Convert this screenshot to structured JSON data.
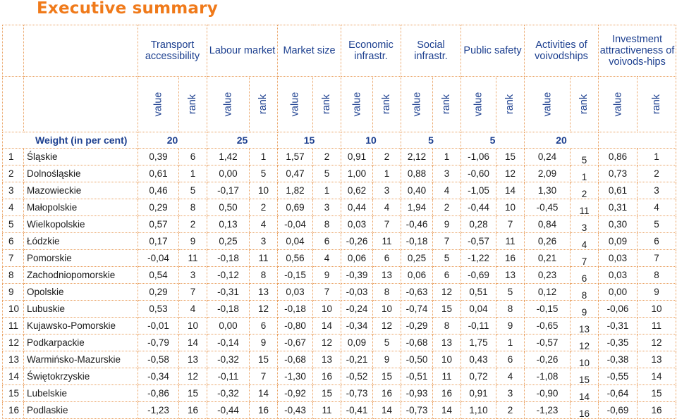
{
  "title": "Executive summary",
  "headers": [
    "Transport accessibility",
    "Labour market",
    "Market size",
    "Economic infrastr.",
    "Social infrastr.",
    "Public safety",
    "Activities of voivodships",
    "Investment attractiveness of voivods-hips"
  ],
  "sub_value": "value",
  "sub_rank": "rank",
  "weight_label": "Weight (in per cent)",
  "weights": [
    "20",
    "25",
    "15",
    "10",
    "5",
    "5",
    "20"
  ],
  "rows": [
    {
      "n": "1",
      "name": "Śląskie",
      "v": [
        "0,39",
        "6",
        "1,42",
        "1",
        "1,57",
        "2",
        "0,91",
        "2",
        "2,12",
        "1",
        "-1,06",
        "15",
        "0,24",
        "5",
        "0,86",
        "1"
      ]
    },
    {
      "n": "2",
      "name": "Dolnośląskie",
      "v": [
        "0,61",
        "1",
        "0,00",
        "5",
        "0,47",
        "5",
        "1,00",
        "1",
        "0,88",
        "3",
        "-0,60",
        "12",
        "2,09",
        "1",
        "0,73",
        "2"
      ]
    },
    {
      "n": "3",
      "name": "Mazowieckie",
      "v": [
        "0,46",
        "5",
        "-0,17",
        "10",
        "1,82",
        "1",
        "0,62",
        "3",
        "0,40",
        "4",
        "-1,05",
        "14",
        "1,30",
        "2",
        "0,61",
        "3"
      ]
    },
    {
      "n": "4",
      "name": "Małopolskie",
      "v": [
        "0,29",
        "8",
        "0,50",
        "2",
        "0,69",
        "3",
        "0,44",
        "4",
        "1,94",
        "2",
        "-0,44",
        "10",
        "-0,45",
        "11",
        "0,31",
        "4"
      ]
    },
    {
      "n": "5",
      "name": "Wielkopolskie",
      "v": [
        "0,57",
        "2",
        "0,13",
        "4",
        "-0,04",
        "8",
        "0,03",
        "7",
        "-0,46",
        "9",
        "0,28",
        "7",
        "0,84",
        "3",
        "0,30",
        "5"
      ]
    },
    {
      "n": "6",
      "name": "Łódzkie",
      "v": [
        "0,17",
        "9",
        "0,25",
        "3",
        "0,04",
        "6",
        "-0,26",
        "11",
        "-0,18",
        "7",
        "-0,57",
        "11",
        "0,26",
        "4",
        "0,09",
        "6"
      ]
    },
    {
      "n": "7",
      "name": "Pomorskie",
      "v": [
        "-0,04",
        "11",
        "-0,18",
        "11",
        "0,56",
        "4",
        "0,06",
        "6",
        "0,25",
        "5",
        "-1,22",
        "16",
        "0,21",
        "7",
        "0,03",
        "7"
      ]
    },
    {
      "n": "8",
      "name": "Zachodniopomorskie",
      "v": [
        "0,54",
        "3",
        "-0,12",
        "8",
        "-0,15",
        "9",
        "-0,39",
        "13",
        "0,06",
        "6",
        "-0,69",
        "13",
        "0,23",
        "6",
        "0,03",
        "8"
      ]
    },
    {
      "n": "9",
      "name": "Opolskie",
      "v": [
        "0,29",
        "7",
        "-0,31",
        "13",
        "0,03",
        "7",
        "-0,03",
        "8",
        "-0,63",
        "12",
        "0,51",
        "5",
        "0,12",
        "8",
        "0,00",
        "9"
      ]
    },
    {
      "n": "10",
      "name": "Lubuskie",
      "v": [
        "0,53",
        "4",
        "-0,18",
        "12",
        "-0,18",
        "10",
        "-0,24",
        "10",
        "-0,74",
        "15",
        "0,04",
        "8",
        "-0,15",
        "9",
        "-0,06",
        "10"
      ]
    },
    {
      "n": "11",
      "name": "Kujawsko-Pomorskie",
      "v": [
        "-0,01",
        "10",
        "0,00",
        "6",
        "-0,80",
        "14",
        "-0,34",
        "12",
        "-0,29",
        "8",
        "-0,11",
        "9",
        "-0,65",
        "13",
        "-0,31",
        "11"
      ]
    },
    {
      "n": "12",
      "name": "Podkarpackie",
      "v": [
        "-0,79",
        "14",
        "-0,14",
        "9",
        "-0,67",
        "12",
        "0,09",
        "5",
        "-0,68",
        "13",
        "1,75",
        "1",
        "-0,57",
        "12",
        "-0,35",
        "12"
      ]
    },
    {
      "n": "13",
      "name": "Warmińsko-Mazurskie",
      "v": [
        "-0,58",
        "13",
        "-0,32",
        "15",
        "-0,68",
        "13",
        "-0,21",
        "9",
        "-0,50",
        "10",
        "0,43",
        "6",
        "-0,26",
        "10",
        "-0,38",
        "13"
      ]
    },
    {
      "n": "14",
      "name": "Świętokrzyskie",
      "v": [
        "-0,34",
        "12",
        "-0,11",
        "7",
        "-1,30",
        "16",
        "-0,52",
        "15",
        "-0,51",
        "11",
        "0,72",
        "4",
        "-1,08",
        "15",
        "-0,55",
        "14"
      ]
    },
    {
      "n": "15",
      "name": "Lubelskie",
      "v": [
        "-0,86",
        "15",
        "-0,32",
        "14",
        "-0,92",
        "15",
        "-0,73",
        "16",
        "-0,93",
        "16",
        "0,91",
        "3",
        "-0,90",
        "14",
        "-0,64",
        "15"
      ]
    },
    {
      "n": "16",
      "name": "Podlaskie",
      "v": [
        "-1,23",
        "16",
        "-0,44",
        "16",
        "-0,43",
        "11",
        "-0,41",
        "14",
        "-0,73",
        "14",
        "1,10",
        "2",
        "-1,23",
        "16",
        "-0,69",
        "16"
      ]
    }
  ]
}
